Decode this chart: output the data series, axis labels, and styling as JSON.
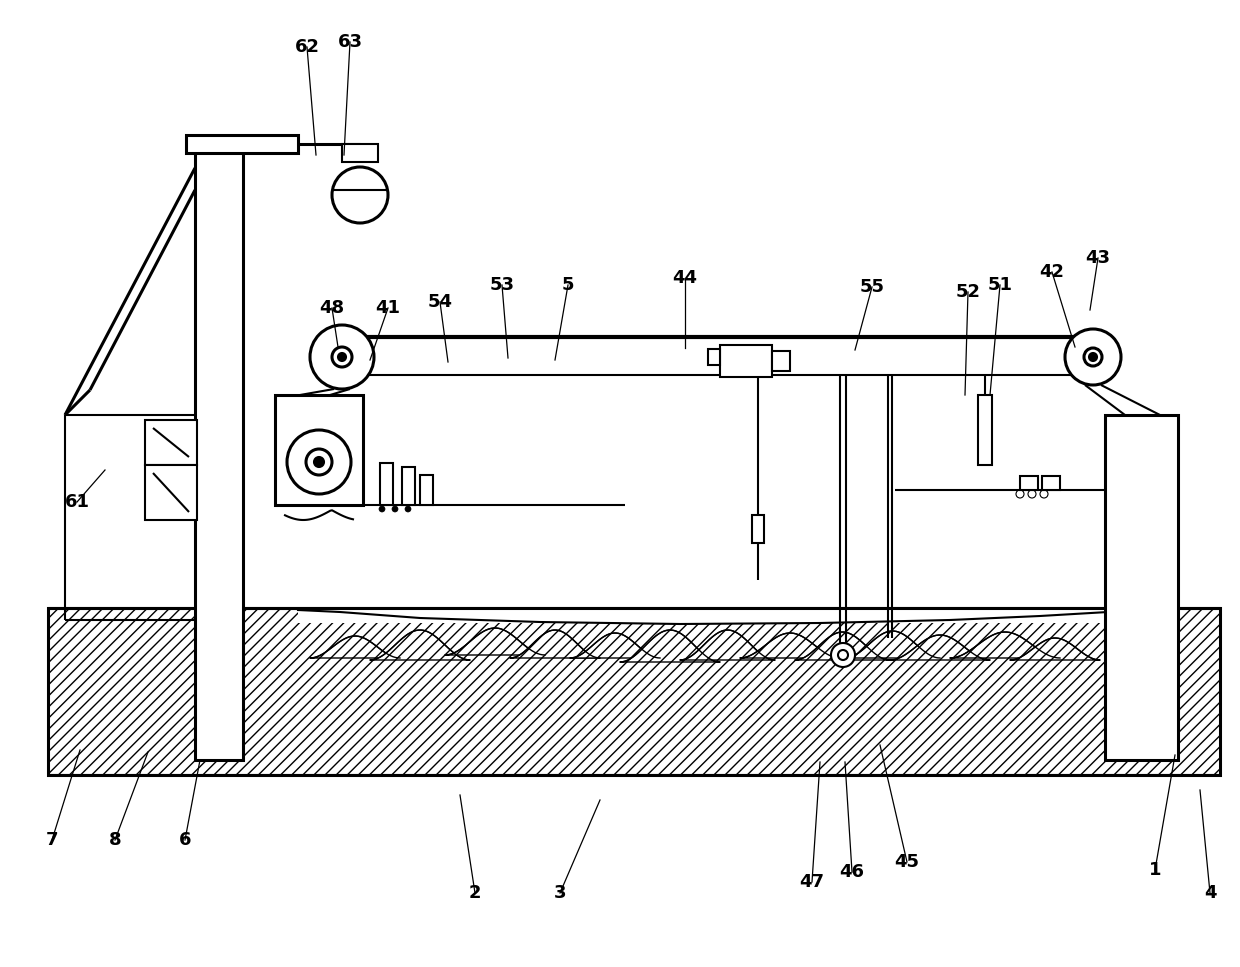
{
  "bg_color": "#ffffff",
  "line_color": "#000000",
  "fig_width": 12.4,
  "fig_height": 9.67,
  "annotations": {
    "1": [
      1155,
      870,
      1175,
      755
    ],
    "2": [
      475,
      893,
      460,
      795
    ],
    "3": [
      560,
      893,
      600,
      800
    ],
    "4": [
      1210,
      893,
      1200,
      790
    ],
    "5": [
      568,
      285,
      555,
      360
    ],
    "6": [
      185,
      840,
      200,
      760
    ],
    "7": [
      52,
      840,
      80,
      750
    ],
    "8": [
      115,
      840,
      148,
      752
    ],
    "41": [
      388,
      308,
      370,
      360
    ],
    "42": [
      1052,
      272,
      1075,
      347
    ],
    "43": [
      1098,
      258,
      1090,
      310
    ],
    "44": [
      685,
      278,
      685,
      348
    ],
    "45": [
      907,
      862,
      880,
      745
    ],
    "46": [
      852,
      872,
      845,
      762
    ],
    "47": [
      812,
      882,
      820,
      762
    ],
    "48": [
      332,
      308,
      338,
      347
    ],
    "51": [
      1000,
      285,
      990,
      395
    ],
    "52": [
      968,
      292,
      965,
      395
    ],
    "53": [
      502,
      285,
      508,
      358
    ],
    "54": [
      440,
      302,
      448,
      362
    ],
    "55": [
      872,
      287,
      855,
      350
    ],
    "61": [
      77,
      502,
      105,
      470
    ],
    "62": [
      307,
      47,
      316,
      155
    ],
    "63": [
      350,
      42,
      344,
      155
    ]
  }
}
